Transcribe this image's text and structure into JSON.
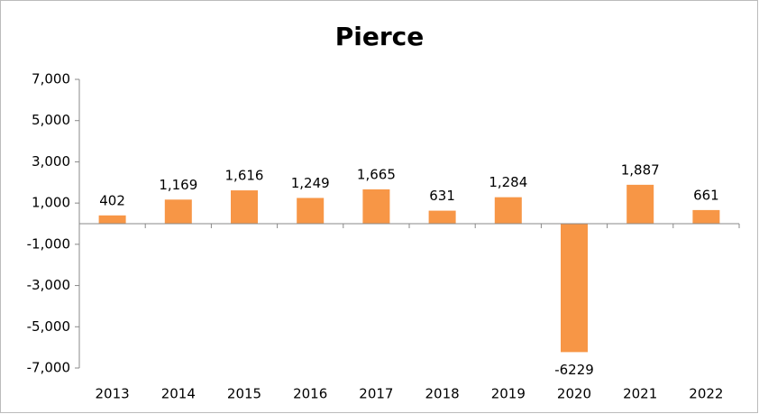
{
  "chart_data": {
    "type": "bar",
    "title": "Pierce",
    "categories": [
      "2013",
      "2014",
      "2015",
      "2016",
      "2017",
      "2018",
      "2019",
      "2020",
      "2021",
      "2022"
    ],
    "values": [
      402,
      1169,
      1616,
      1249,
      1665,
      631,
      1284,
      -6229,
      1887,
      661
    ],
    "value_labels": [
      "402",
      "1,169",
      "1,616",
      "1,249",
      "1,665",
      "631",
      "1,284",
      "-6229",
      "1,887",
      "661"
    ],
    "color": "#f79646",
    "ylim": [
      -7000,
      7000
    ],
    "yticks": [
      {
        "value": -7000,
        "label": "-7,000"
      },
      {
        "value": -5000,
        "label": "-5,000"
      },
      {
        "value": -3000,
        "label": "-3,000"
      },
      {
        "value": -1000,
        "label": "-1,000"
      },
      {
        "value": 1000,
        "label": "1,000"
      },
      {
        "value": 3000,
        "label": "3,000"
      },
      {
        "value": 5000,
        "label": "5,000"
      },
      {
        "value": 7000,
        "label": "7,000"
      }
    ],
    "grid": false
  }
}
